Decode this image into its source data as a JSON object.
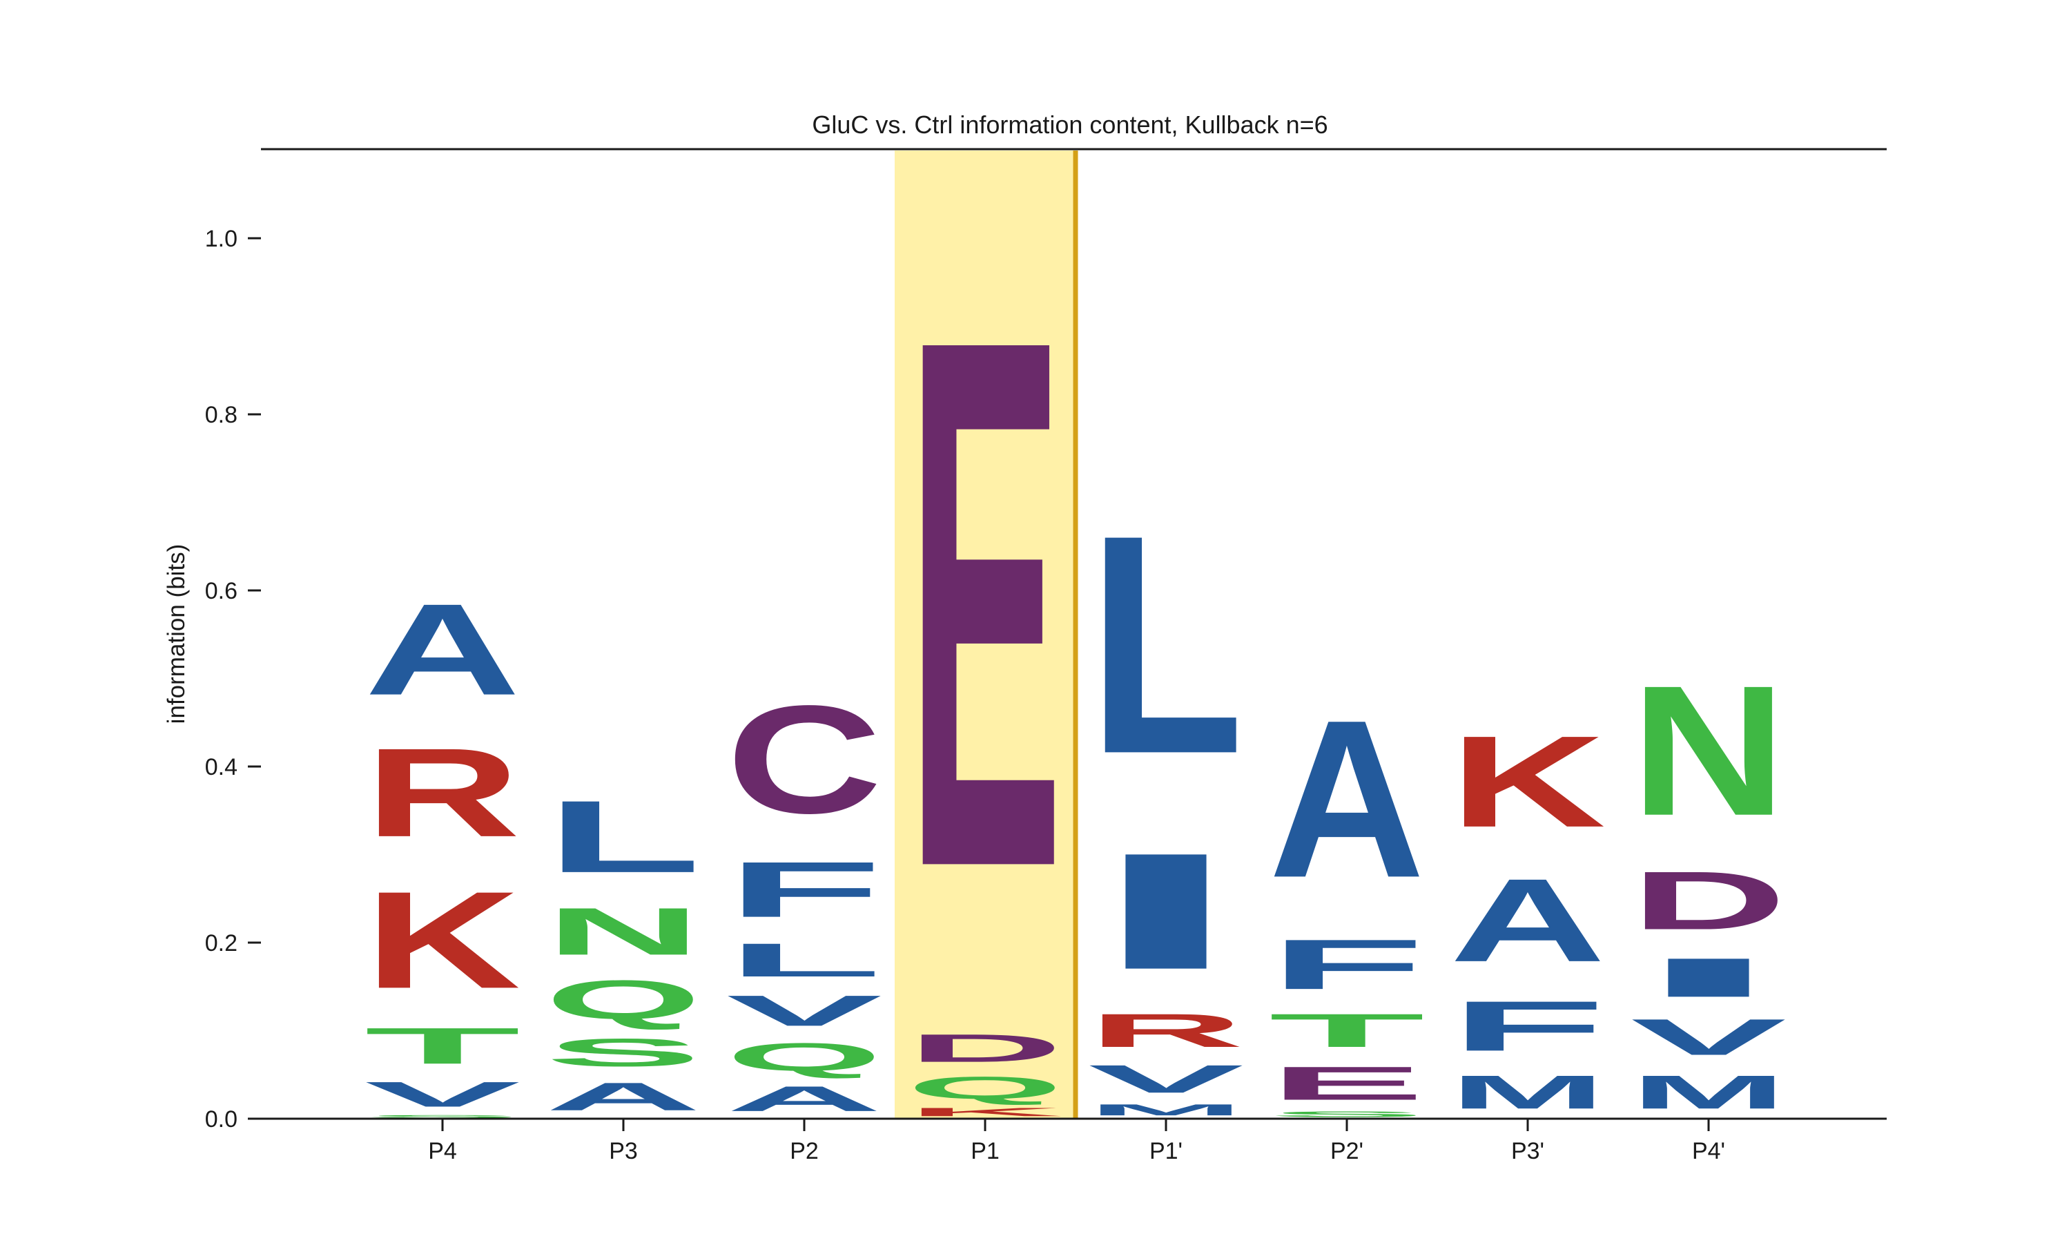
{
  "chart_data": {
    "type": "sequence-logo",
    "title": "GluC vs. Ctrl information content, Kullback n=6",
    "ylabel": "information (bits)",
    "xlabel": "",
    "ylim": [
      0.0,
      1.1
    ],
    "yticks": [
      {
        "value": 0.0,
        "label": "0.0"
      },
      {
        "value": 0.2,
        "label": "0.2"
      },
      {
        "value": 0.4,
        "label": "0.4"
      },
      {
        "value": 0.6,
        "label": "0.6"
      },
      {
        "value": 0.8,
        "label": "0.8"
      },
      {
        "value": 1.0,
        "label": "1.0"
      }
    ],
    "highlight": {
      "position": "P1",
      "fill": "#fff1a8",
      "edge": "#d4a017"
    },
    "colors": {
      "blue": "#235a9c",
      "red": "#b92d23",
      "green": "#3fb844",
      "purple": "#6a2a6a"
    },
    "positions": [
      {
        "label": "P4",
        "letters": [
          {
            "letter": "S",
            "color": "green",
            "height": 0.005
          },
          {
            "letter": "V",
            "color": "blue",
            "height": 0.045
          },
          {
            "letter": "T",
            "color": "green",
            "height": 0.065
          },
          {
            "letter": "K",
            "color": "red",
            "height": 0.175
          },
          {
            "letter": "R",
            "color": "red",
            "height": 0.16
          },
          {
            "letter": "A",
            "color": "blue",
            "height": 0.165
          }
        ]
      },
      {
        "label": "P3",
        "letters": [
          {
            "letter": "A",
            "color": "blue",
            "height": 0.05
          },
          {
            "letter": "S",
            "color": "green",
            "height": 0.05
          },
          {
            "letter": "Q",
            "color": "green",
            "height": 0.07
          },
          {
            "letter": "N",
            "color": "green",
            "height": 0.085
          },
          {
            "letter": "L",
            "color": "blue",
            "height": 0.13
          }
        ]
      },
      {
        "label": "P2",
        "letters": [
          {
            "letter": "A",
            "color": "blue",
            "height": 0.045
          },
          {
            "letter": "Q",
            "color": "green",
            "height": 0.05
          },
          {
            "letter": "V",
            "color": "blue",
            "height": 0.055
          },
          {
            "letter": "L",
            "color": "blue",
            "height": 0.06
          },
          {
            "letter": "F",
            "color": "blue",
            "height": 0.1
          },
          {
            "letter": "C",
            "color": "purple",
            "height": 0.195
          }
        ]
      },
      {
        "label": "P1",
        "letters": [
          {
            "letter": "K",
            "color": "red",
            "height": 0.015
          },
          {
            "letter": "Q",
            "color": "green",
            "height": 0.04
          },
          {
            "letter": "D",
            "color": "purple",
            "height": 0.05
          },
          {
            "letter": "E",
            "color": "purple",
            "height": 0.955
          }
        ]
      },
      {
        "label": "P1'",
        "letters": [
          {
            "letter": "M",
            "color": "blue",
            "height": 0.02
          },
          {
            "letter": "V",
            "color": "blue",
            "height": 0.05
          },
          {
            "letter": "R",
            "color": "red",
            "height": 0.06
          },
          {
            "letter": "I",
            "color": "blue",
            "height": 0.21
          },
          {
            "letter": "L",
            "color": "blue",
            "height": 0.395
          }
        ]
      },
      {
        "label": "P2'",
        "letters": [
          {
            "letter": "S",
            "color": "green",
            "height": 0.01
          },
          {
            "letter": "E",
            "color": "purple",
            "height": 0.06
          },
          {
            "letter": "T",
            "color": "green",
            "height": 0.06
          },
          {
            "letter": "F",
            "color": "blue",
            "height": 0.09
          },
          {
            "letter": "A",
            "color": "blue",
            "height": 0.285
          }
        ]
      },
      {
        "label": "P3'",
        "letters": [
          {
            "letter": "M",
            "color": "blue",
            "height": 0.06
          },
          {
            "letter": "F",
            "color": "blue",
            "height": 0.09
          },
          {
            "letter": "A",
            "color": "blue",
            "height": 0.15
          },
          {
            "letter": "K",
            "color": "red",
            "height": 0.165
          }
        ]
      },
      {
        "label": "P4'",
        "letters": [
          {
            "letter": "M",
            "color": "blue",
            "height": 0.06
          },
          {
            "letter": "V",
            "color": "blue",
            "height": 0.065
          },
          {
            "letter": "I",
            "color": "blue",
            "height": 0.07
          },
          {
            "letter": "D",
            "color": "purple",
            "height": 0.105
          },
          {
            "letter": "N",
            "color": "green",
            "height": 0.235
          }
        ]
      }
    ]
  }
}
